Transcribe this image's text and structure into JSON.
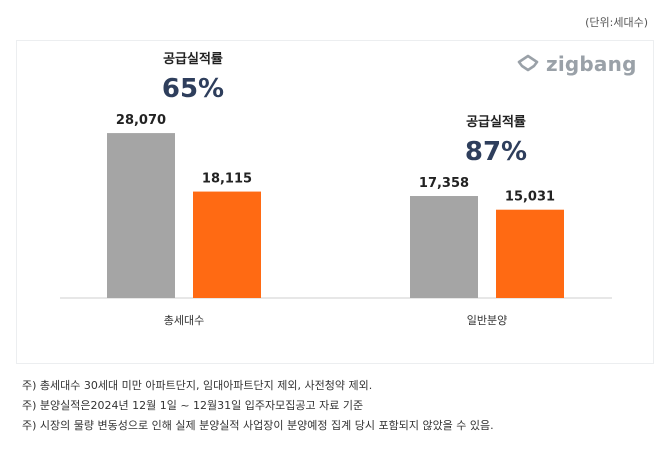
{
  "unit_label": "(단위:세대수)",
  "brand": {
    "name": "zigbang",
    "icon": "zigbang-logo-icon",
    "color": "#9aa1a8"
  },
  "colors": {
    "gray_bar": "#a5a5a5",
    "orange_bar": "#ff6a13",
    "rate_text": "#2e3e5c",
    "axis": "#cfcfcf"
  },
  "chart_data": {
    "type": "bar",
    "categories": [
      "총세대수",
      "일반분양"
    ],
    "series": [
      {
        "values": [
          28070,
          17358
        ],
        "color": "#a5a5a5"
      },
      {
        "values": [
          18115,
          15031
        ],
        "color": "#ff6a13"
      }
    ],
    "value_labels": [
      [
        "28,070",
        "17,358"
      ],
      [
        "18,115",
        "15,031"
      ]
    ],
    "annotations": [
      {
        "label": "공급실적률",
        "value": "65%"
      },
      {
        "label": "공급실적률",
        "value": "87%"
      }
    ],
    "ylim": [
      0,
      40000
    ],
    "grid": false
  },
  "notes": [
    "주) 총세대수 30세대 미만 아파트단지, 임대아파트단지 제외, 사전청약 제외.",
    "주) 분양실적은2024년 12월 1일 ~ 12월31일 입주자모집공고 자료 기준",
    "주) 시장의 물량 변동성으로 인해 실제 분양실적 사업장이 분양예정 집계 당시 포함되지 않았을 수 있음."
  ]
}
